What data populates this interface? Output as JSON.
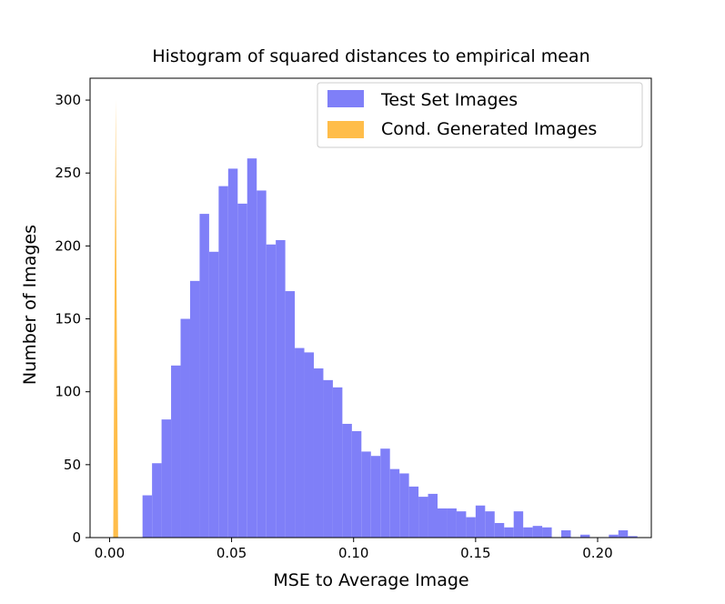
{
  "chart_data": {
    "type": "bar",
    "title": "Histogram of squared distances to empirical mean",
    "xlabel": "MSE to Average Image",
    "ylabel": "Number of Images",
    "xlim": [
      -0.008,
      0.222
    ],
    "ylim": [
      0,
      315
    ],
    "xticks": [
      0.0,
      0.05,
      0.1,
      0.15,
      0.2
    ],
    "xtick_labels": [
      "0.00",
      "0.05",
      "0.10",
      "0.15",
      "0.20"
    ],
    "yticks": [
      0,
      50,
      100,
      150,
      200,
      250,
      300
    ],
    "ytick_labels": [
      "0",
      "50",
      "100",
      "150",
      "200",
      "250",
      "300"
    ],
    "grid": false,
    "legend_position": "top-right",
    "series": [
      {
        "name": "Test Set Images",
        "color": "#7f7ff8",
        "kind": "histogram",
        "bin_start": 0.0135,
        "bin_width": 0.0039,
        "counts": [
          29,
          51,
          81,
          118,
          150,
          176,
          222,
          196,
          241,
          253,
          229,
          260,
          238,
          201,
          204,
          169,
          130,
          127,
          116,
          108,
          103,
          78,
          73,
          59,
          56,
          61,
          47,
          44,
          35,
          28,
          30,
          20,
          20,
          18,
          14,
          22,
          18,
          10,
          7,
          18,
          7,
          8,
          7,
          0,
          5,
          0,
          2,
          0,
          0,
          2,
          5,
          1
        ]
      },
      {
        "name": "Cond. Generated Images",
        "color": "#ffbd4a",
        "kind": "spike",
        "x": [
          0.0015,
          0.0022,
          0.0025,
          0.0028,
          0.0035
        ],
        "y": [
          0,
          210,
          300,
          190,
          0
        ]
      }
    ]
  }
}
